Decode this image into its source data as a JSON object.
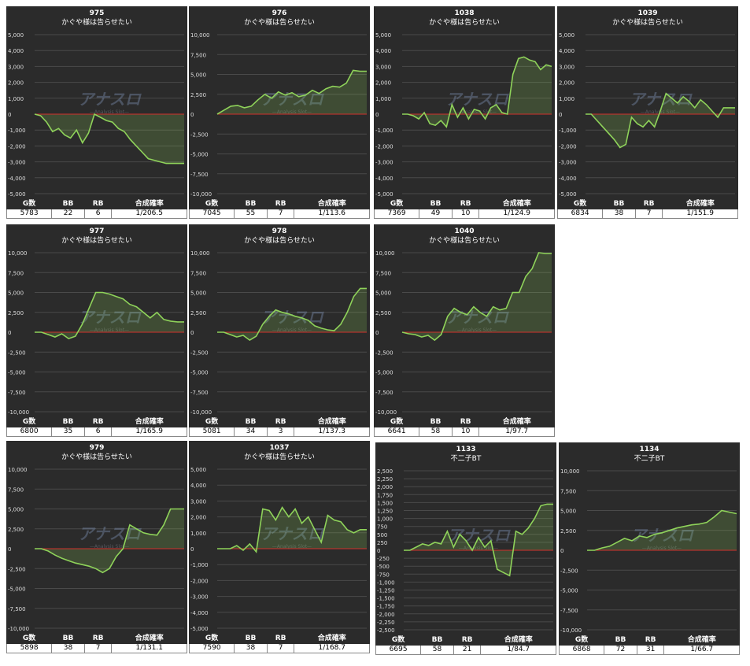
{
  "watermark": {
    "title": "アナスロ",
    "subtitle": "—Analysis Slot—"
  },
  "table_header": [
    "G数",
    "BB",
    "RB",
    "合成確率"
  ],
  "chart_data": [
    {
      "type": "line",
      "title": "975",
      "subtitle": "かぐや様は告らせたい",
      "color": "#8fd35a",
      "ylim": [
        -5000,
        5000
      ],
      "yticks": [
        {
          "value": 5000,
          "label": "5,000"
        },
        {
          "value": 4000,
          "label": "4,000"
        },
        {
          "value": 3000,
          "label": "3,000"
        },
        {
          "value": 2000,
          "label": "2,000"
        },
        {
          "value": 1000,
          "label": "1,000"
        },
        0,
        {
          "value": -1000,
          "label": "-1,000"
        },
        {
          "value": -2000,
          "label": "-2,000"
        },
        {
          "value": -3000,
          "label": "-3,000"
        },
        {
          "value": -4000,
          "label": "-4,000"
        },
        {
          "value": -5000,
          "label": "-5,000"
        }
      ],
      "values": [
        0,
        -100,
        -500,
        -1100,
        -900,
        -1300,
        -1500,
        -1000,
        -1800,
        -1200,
        0,
        -200,
        -400,
        -500,
        -900,
        -1100,
        -1600,
        -2000,
        -2400,
        -2800,
        -2900,
        -3000,
        -3100,
        -3100,
        -3100,
        -3100
      ]
    },
    {
      "type": "line",
      "title": "976",
      "subtitle": "かぐや様は告らせたい",
      "color": "#8fd35a",
      "ylim": [
        -10000,
        10000
      ],
      "yticks": [
        {
          "value": 10000,
          "label": "10,000"
        },
        {
          "value": 7500,
          "label": "7,500"
        },
        {
          "value": 5000,
          "label": "5,000"
        },
        {
          "value": 2500,
          "label": "2,500"
        },
        0,
        {
          "value": -2500,
          "label": "-2,500"
        },
        {
          "value": -5000,
          "label": "-5,000"
        },
        {
          "value": -7500,
          "label": "-7,500"
        },
        {
          "value": -10000,
          "label": "-10,000"
        }
      ],
      "values": [
        0,
        500,
        1000,
        1100,
        800,
        1000,
        1800,
        2500,
        2000,
        2800,
        2400,
        2700,
        2200,
        2400,
        3000,
        2600,
        3200,
        3500,
        3400,
        3900,
        5500,
        5400,
        5400
      ]
    },
    {
      "type": "line",
      "title": "1038",
      "subtitle": "かぐや様は告らせたい",
      "color": "#8fd35a",
      "ylim": [
        -5000,
        5000
      ],
      "yticks": [
        {
          "value": 5000,
          "label": "5,000"
        },
        {
          "value": 4000,
          "label": "4,000"
        },
        {
          "value": 3000,
          "label": "3,000"
        },
        {
          "value": 2000,
          "label": "2,000"
        },
        {
          "value": 1000,
          "label": "1,000"
        },
        0,
        {
          "value": -1000,
          "label": "-1,000"
        },
        {
          "value": -2000,
          "label": "-2,000"
        },
        {
          "value": -3000,
          "label": "-3,000"
        },
        {
          "value": -4000,
          "label": "-4,000"
        },
        {
          "value": -5000,
          "label": "-5,000"
        }
      ],
      "values": [
        0,
        0,
        -100,
        -300,
        100,
        -600,
        -700,
        -400,
        -800,
        600,
        -200,
        400,
        -300,
        300,
        200,
        -300,
        400,
        600,
        100,
        0,
        2500,
        3500,
        3600,
        3400,
        3300,
        2800,
        3100,
        3000
      ]
    },
    {
      "type": "line",
      "title": "1039",
      "subtitle": "かぐや様は告らせたい",
      "color": "#8fd35a",
      "ylim": [
        -5000,
        5000
      ],
      "yticks": [
        {
          "value": 5000,
          "label": "5,000"
        },
        {
          "value": 4000,
          "label": "4,000"
        },
        {
          "value": 3000,
          "label": "3,000"
        },
        {
          "value": 2000,
          "label": "2,000"
        },
        {
          "value": 1000,
          "label": "1,000"
        },
        0,
        {
          "value": -1000,
          "label": "-1,000"
        },
        {
          "value": -2000,
          "label": "-2,000"
        },
        {
          "value": -3000,
          "label": "-3,000"
        },
        {
          "value": -4000,
          "label": "-4,000"
        },
        {
          "value": -5000,
          "label": "-5,000"
        }
      ],
      "values": [
        0,
        0,
        -400,
        -800,
        -1200,
        -1600,
        -2100,
        -1900,
        -200,
        -600,
        -800,
        -400,
        -800,
        200,
        1300,
        1000,
        700,
        1100,
        800,
        400,
        900,
        600,
        200,
        -200,
        400,
        400,
        400
      ]
    },
    {
      "type": "line",
      "title": "977",
      "subtitle": "かぐや様は告らせたい",
      "color": "#8fd35a",
      "ylim": [
        -10000,
        10000
      ],
      "yticks": [
        {
          "value": 10000,
          "label": "10,000"
        },
        {
          "value": 7500,
          "label": "7,500"
        },
        {
          "value": 5000,
          "label": "5,000"
        },
        {
          "value": 2500,
          "label": "2,500"
        },
        0,
        {
          "value": -2500,
          "label": "-2,500"
        },
        {
          "value": -5000,
          "label": "-5,000"
        },
        {
          "value": -7500,
          "label": "-7,500"
        },
        {
          "value": -10000,
          "label": "-10,000"
        }
      ],
      "values": [
        0,
        0,
        -300,
        -600,
        -200,
        -800,
        -500,
        1000,
        3000,
        5000,
        5000,
        4800,
        4500,
        4200,
        3500,
        3200,
        2500,
        1800,
        2500,
        1600,
        1400,
        1300,
        1300
      ]
    },
    {
      "type": "line",
      "title": "978",
      "subtitle": "かぐや様は告らせたい",
      "color": "#8fd35a",
      "ylim": [
        -10000,
        10000
      ],
      "yticks": [
        {
          "value": 10000,
          "label": "10,000"
        },
        {
          "value": 7500,
          "label": "7,500"
        },
        {
          "value": 5000,
          "label": "5,000"
        },
        {
          "value": 2500,
          "label": "2,500"
        },
        0,
        {
          "value": -2500,
          "label": "-2,500"
        },
        {
          "value": -5000,
          "label": "-5,000"
        },
        {
          "value": -7500,
          "label": "-7,500"
        },
        {
          "value": -10000,
          "label": "-10,000"
        }
      ],
      "values": [
        0,
        0,
        -300,
        -600,
        -400,
        -1000,
        -500,
        1000,
        2000,
        2800,
        2500,
        2300,
        2000,
        1800,
        1500,
        800,
        500,
        300,
        200,
        1000,
        2500,
        4500,
        5500,
        5500
      ]
    },
    {
      "type": "line",
      "title": "1040",
      "subtitle": "かぐや様は告らせたい",
      "color": "#8fd35a",
      "ylim": [
        -10000,
        10000
      ],
      "yticks": [
        {
          "value": 10000,
          "label": "10,000"
        },
        {
          "value": 7500,
          "label": "7,500"
        },
        {
          "value": 5000,
          "label": "5,000"
        },
        {
          "value": 2500,
          "label": "2,500"
        },
        0,
        {
          "value": -2500,
          "label": "-2,500"
        },
        {
          "value": -5000,
          "label": "-5,000"
        },
        {
          "value": -7500,
          "label": "-7,500"
        },
        {
          "value": -10000,
          "label": "-10,000"
        }
      ],
      "values": [
        0,
        -200,
        -300,
        -600,
        -400,
        -1000,
        -300,
        2000,
        3000,
        2500,
        2200,
        3200,
        2500,
        2000,
        3200,
        2800,
        3000,
        5000,
        5000,
        7000,
        8000,
        10000,
        9900,
        9900
      ]
    },
    {
      "type": "line",
      "title": "979",
      "subtitle": "かぐや様は告らせたい",
      "color": "#8fd35a",
      "ylim": [
        -10000,
        10000
      ],
      "yticks": [
        {
          "value": 10000,
          "label": "10,000"
        },
        {
          "value": 7500,
          "label": "7,500"
        },
        {
          "value": 5000,
          "label": "5,000"
        },
        {
          "value": 2500,
          "label": "2,500"
        },
        0,
        {
          "value": -2500,
          "label": "-2,500"
        },
        {
          "value": -5000,
          "label": "-5,000"
        },
        {
          "value": -7500,
          "label": "-7,500"
        },
        {
          "value": -10000,
          "label": "-10,000"
        }
      ],
      "values": [
        0,
        0,
        -300,
        -800,
        -1200,
        -1500,
        -1800,
        -2000,
        -2200,
        -2500,
        -3000,
        -2500,
        -1000,
        0,
        3000,
        2500,
        2000,
        1800,
        1700,
        3000,
        5000,
        5000,
        5000
      ]
    },
    {
      "type": "line",
      "title": "1037",
      "subtitle": "かぐや様は告らせたい",
      "color": "#8fd35a",
      "ylim": [
        -5000,
        5000
      ],
      "yticks": [
        {
          "value": 5000,
          "label": "5,000"
        },
        {
          "value": 4000,
          "label": "4,000"
        },
        {
          "value": 3000,
          "label": "3,000"
        },
        {
          "value": 2000,
          "label": "2,000"
        },
        {
          "value": 1000,
          "label": "1,000"
        },
        0,
        {
          "value": -1000,
          "label": "-1,000"
        },
        {
          "value": -2000,
          "label": "-2,000"
        },
        {
          "value": -3000,
          "label": "-3,000"
        },
        {
          "value": -4000,
          "label": "-4,000"
        },
        {
          "value": -5000,
          "label": "-5,000"
        }
      ],
      "values": [
        0,
        0,
        0,
        200,
        -100,
        300,
        -200,
        2500,
        2400,
        1800,
        2600,
        2000,
        2500,
        1600,
        2000,
        1200,
        400,
        2100,
        1800,
        1700,
        1200,
        1000,
        1200,
        1200
      ]
    },
    {
      "type": "line",
      "title": "1133",
      "subtitle": "不二子BT",
      "color": "#8fd35a",
      "ylim": [
        -2500,
        2500
      ],
      "yticks": [
        {
          "value": 2500,
          "label": "2,500"
        },
        {
          "value": 2250,
          "label": "2,250"
        },
        {
          "value": 2000,
          "label": "2,000"
        },
        {
          "value": 1750,
          "label": "1,750"
        },
        {
          "value": 1500,
          "label": "1,500"
        },
        {
          "value": 1250,
          "label": "1,250"
        },
        {
          "value": 1000,
          "label": "1,000"
        },
        750,
        500,
        250,
        0,
        -250,
        -500,
        -750,
        {
          "value": -1000,
          "label": "-1,000"
        },
        {
          "value": -1250,
          "label": "-1,250"
        },
        {
          "value": -1500,
          "label": "-1,500"
        },
        {
          "value": -1750,
          "label": "-1,750"
        },
        {
          "value": -2000,
          "label": "-2,000"
        },
        {
          "value": -2250,
          "label": "-2,250"
        },
        {
          "value": -2500,
          "label": "-2,500"
        }
      ],
      "values": [
        0,
        0,
        100,
        200,
        150,
        250,
        200,
        600,
        100,
        500,
        300,
        0,
        400,
        100,
        300,
        -600,
        -700,
        -800,
        600,
        500,
        700,
        1000,
        1400,
        1450,
        1450
      ]
    },
    {
      "type": "line",
      "title": "1134",
      "subtitle": "不二子BT",
      "color": "#8fd35a",
      "ylim": [
        -10000,
        10000
      ],
      "yticks": [
        {
          "value": 10000,
          "label": "10,000"
        },
        {
          "value": 7500,
          "label": "7,500"
        },
        {
          "value": 5000,
          "label": "5,000"
        },
        {
          "value": 2500,
          "label": "2,500"
        },
        0,
        {
          "value": -2500,
          "label": "-2,500"
        },
        {
          "value": -5000,
          "label": "-5,000"
        },
        {
          "value": -7500,
          "label": "-7,500"
        },
        {
          "value": -10000,
          "label": "-10,000"
        }
      ],
      "values": [
        0,
        0,
        300,
        500,
        1000,
        1500,
        1200,
        1800,
        1600,
        2000,
        2200,
        2500,
        2800,
        3000,
        3200,
        3300,
        3500,
        4200,
        5000,
        4800,
        4600
      ]
    }
  ],
  "tables": [
    [
      "5783",
      "22",
      "6",
      "1/206.5"
    ],
    [
      "7045",
      "55",
      "7",
      "1/113.6"
    ],
    [
      "7369",
      "49",
      "10",
      "1/124.9"
    ],
    [
      "6834",
      "38",
      "7",
      "1/151.9"
    ],
    [
      "6800",
      "35",
      "6",
      "1/165.9"
    ],
    [
      "5081",
      "34",
      "3",
      "1/137.3"
    ],
    [
      "6641",
      "58",
      "10",
      "1/97.7"
    ],
    [
      "5898",
      "38",
      "7",
      "1/131.1"
    ],
    [
      "7590",
      "38",
      "7",
      "1/168.7"
    ],
    [
      "6695",
      "58",
      "21",
      "1/84.7"
    ],
    [
      "6868",
      "72",
      "31",
      "1/66.7"
    ]
  ]
}
